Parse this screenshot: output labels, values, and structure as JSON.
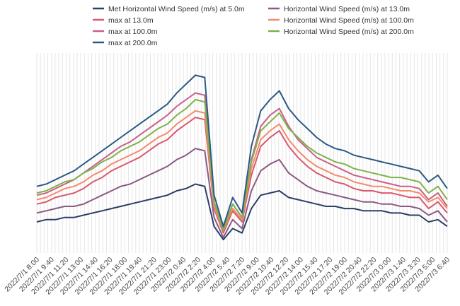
{
  "chart_data": {
    "type": "line",
    "title": "",
    "xlabel": "",
    "ylabel": "",
    "y_axis_labels_shown": false,
    "grid": "vertical lines only",
    "legend_position": "top",
    "xtick_labels": [
      "2022/7/1 8:00",
      "2022/7/1 9:40",
      "2022/7/1 11:20",
      "2022/7/1 13:00",
      "2022/7/1 14:40",
      "2022/7/1 16:20",
      "2022/7/1 18:00",
      "2022/7/1 19:40",
      "2022/7/1 21:20",
      "2022/7/1 23:00",
      "2022/7/2 0:40",
      "2022/7/2 2:20",
      "2022/7/2 4:00",
      "2022/7/2 5:40",
      "2022/7/2 7:20",
      "2022/7/2 9:00",
      "2022/7/2 10:40",
      "2022/7/2 12:20",
      "2022/7/2 14:00",
      "2022/7/2 15:40",
      "2022/7/2 17:20",
      "2022/7/2 19:00",
      "2022/7/2 20:40",
      "2022/7/2 22:20",
      "2022/7/3 0:00",
      "2022/7/3 1:40",
      "2022/7/3 3:20",
      "2022/7/3 5:00",
      "2022/7/3 6:40"
    ],
    "series": [
      {
        "name": "Met Horizontal Wind Speed (m/s) at 5.0m",
        "color": "#2c3e66",
        "values": [
          1.4,
          1.5,
          1.5,
          1.6,
          1.6,
          1.7,
          1.8,
          1.9,
          2.0,
          2.1,
          2.2,
          2.3,
          2.4,
          2.5,
          2.6,
          2.8,
          2.9,
          3.1,
          3.0,
          1.2,
          0.6,
          1.1,
          0.9,
          2.0,
          2.6,
          2.7,
          2.8,
          2.5,
          2.4,
          2.3,
          2.2,
          2.1,
          2.1,
          2.0,
          2.0,
          1.9,
          1.9,
          1.9,
          1.8,
          1.8,
          1.7,
          1.7,
          1.4,
          1.5,
          1.2
        ]
      },
      {
        "name": "Horizontal Wind Speed (m/s) at 13.0m",
        "color": "#8b5a83",
        "values": [
          1.8,
          1.9,
          2.0,
          2.1,
          2.1,
          2.2,
          2.4,
          2.6,
          2.8,
          3.0,
          3.1,
          3.3,
          3.5,
          3.7,
          3.9,
          4.2,
          4.4,
          4.7,
          4.6,
          1.6,
          0.7,
          1.5,
          1.1,
          2.8,
          3.7,
          4.0,
          4.2,
          3.6,
          3.3,
          3.0,
          2.8,
          2.7,
          2.6,
          2.5,
          2.4,
          2.3,
          2.3,
          2.2,
          2.2,
          2.1,
          2.1,
          2.0,
          1.7,
          1.9,
          1.4
        ]
      },
      {
        "name": "max at 13.0m",
        "color": "#d9586e",
        "values": [
          2.2,
          2.3,
          2.5,
          2.6,
          2.7,
          2.9,
          3.2,
          3.4,
          3.7,
          3.9,
          4.1,
          4.3,
          4.6,
          4.9,
          5.1,
          5.5,
          5.8,
          6.1,
          6.0,
          2.0,
          0.9,
          1.9,
          1.4,
          3.5,
          4.8,
          5.2,
          5.5,
          4.8,
          4.3,
          3.9,
          3.6,
          3.4,
          3.2,
          3.1,
          2.9,
          2.8,
          2.8,
          2.7,
          2.7,
          2.6,
          2.5,
          2.5,
          2.0,
          2.3,
          1.8
        ]
      },
      {
        "name": "Horizontal Wind Speed (m/s) at 100.0m",
        "color": "#f58a6a",
        "values": [
          2.4,
          2.5,
          2.7,
          2.9,
          3.0,
          3.2,
          3.5,
          3.7,
          4.0,
          4.2,
          4.4,
          4.6,
          4.9,
          5.2,
          5.4,
          5.8,
          6.1,
          6.4,
          6.3,
          2.1,
          1.0,
          2.0,
          1.5,
          3.8,
          5.1,
          5.5,
          5.8,
          5.1,
          4.6,
          4.2,
          3.9,
          3.7,
          3.5,
          3.4,
          3.2,
          3.1,
          3.0,
          3.0,
          2.9,
          2.8,
          2.8,
          2.7,
          2.3,
          2.5,
          2.0
        ]
      },
      {
        "name": "max at 100.0m",
        "color": "#c9608a",
        "values": [
          2.6,
          2.7,
          2.9,
          3.1,
          3.3,
          3.6,
          3.9,
          4.2,
          4.5,
          4.8,
          5.0,
          5.3,
          5.6,
          5.9,
          6.2,
          6.6,
          6.9,
          7.2,
          7.1,
          2.3,
          1.1,
          2.2,
          1.6,
          4.2,
          5.7,
          6.2,
          6.5,
          5.7,
          5.1,
          4.7,
          4.3,
          4.1,
          3.9,
          3.7,
          3.5,
          3.4,
          3.3,
          3.2,
          3.1,
          3.0,
          3.0,
          2.9,
          2.4,
          2.7,
          2.1
        ]
      },
      {
        "name": "Horizontal Wind Speed (m/s) at 200.0m",
        "color": "#7fb24a",
        "values": [
          2.7,
          2.8,
          3.0,
          3.2,
          3.3,
          3.6,
          3.8,
          4.1,
          4.3,
          4.6,
          4.8,
          5.0,
          5.3,
          5.6,
          5.8,
          6.2,
          6.5,
          6.9,
          6.8,
          2.3,
          1.0,
          2.2,
          1.6,
          4.1,
          5.5,
          5.9,
          6.3,
          5.6,
          5.2,
          4.8,
          4.5,
          4.3,
          4.1,
          4.0,
          3.8,
          3.7,
          3.6,
          3.5,
          3.4,
          3.4,
          3.3,
          3.2,
          2.7,
          3.0,
          2.4
        ]
      },
      {
        "name": "max at 200.0m",
        "color": "#2b5a85",
        "values": [
          3.0,
          3.1,
          3.3,
          3.5,
          3.7,
          4.0,
          4.3,
          4.6,
          4.9,
          5.2,
          5.5,
          5.8,
          6.1,
          6.4,
          6.7,
          7.2,
          7.6,
          8.0,
          7.9,
          2.6,
          1.2,
          2.5,
          1.8,
          4.8,
          6.4,
          6.9,
          7.3,
          6.5,
          6.0,
          5.6,
          5.2,
          4.9,
          4.7,
          4.6,
          4.4,
          4.3,
          4.2,
          4.1,
          4.0,
          3.9,
          3.8,
          3.7,
          3.2,
          3.5,
          2.9
        ]
      }
    ]
  }
}
